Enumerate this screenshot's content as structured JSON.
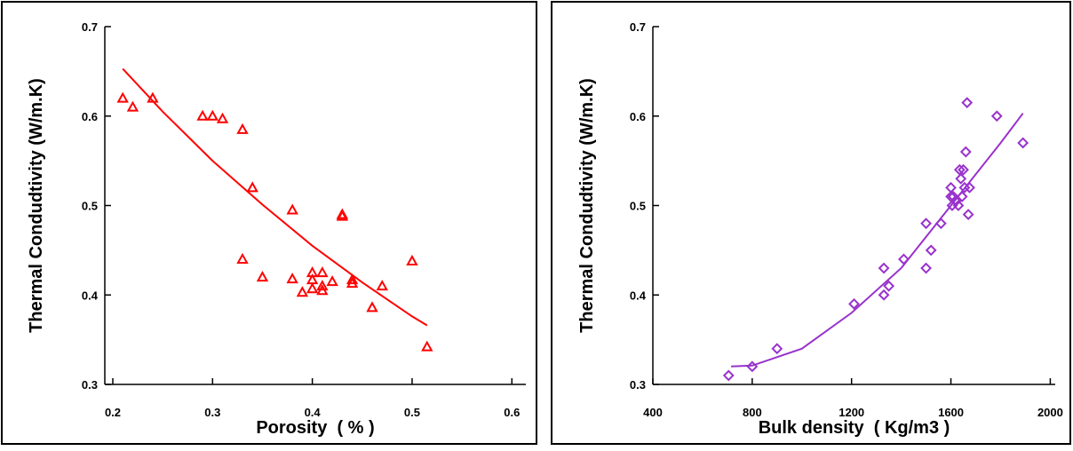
{
  "chart_data": [
    {
      "type": "scatter",
      "marker": "triangle",
      "color": "#ff0000",
      "x_label": "Porosity  ( % )",
      "y_label": "Thermal Condudtivity (W/m.K)",
      "x": [
        0.21,
        0.22,
        0.24,
        0.29,
        0.3,
        0.31,
        0.33,
        0.34,
        0.33,
        0.35,
        0.38,
        0.38,
        0.39,
        0.4,
        0.4,
        0.4,
        0.41,
        0.41,
        0.41,
        0.42,
        0.43,
        0.43,
        0.44,
        0.44,
        0.47,
        0.46,
        0.5,
        0.515
      ],
      "y": [
        0.62,
        0.61,
        0.62,
        0.6,
        0.6,
        0.597,
        0.585,
        0.52,
        0.44,
        0.42,
        0.495,
        0.418,
        0.403,
        0.425,
        0.417,
        0.407,
        0.41,
        0.425,
        0.405,
        0.415,
        0.49,
        0.488,
        0.417,
        0.413,
        0.41,
        0.386,
        0.438,
        0.342
      ],
      "fit": {
        "x": [
          0.21,
          0.25,
          0.3,
          0.35,
          0.4,
          0.45,
          0.5,
          0.515
        ],
        "y": [
          0.653,
          0.605,
          0.55,
          0.501,
          0.455,
          0.414,
          0.376,
          0.366
        ]
      },
      "xlim": [
        0.192,
        0.614
      ],
      "ylim": [
        0.3,
        0.7
      ],
      "xticks": [
        0.2,
        0.3,
        0.4,
        0.5,
        0.6
      ],
      "yticks": [
        0.3,
        0.4,
        0.5,
        0.6,
        0.7
      ]
    },
    {
      "type": "scatter",
      "marker": "diamond",
      "color": "#9932cc",
      "x_label": "Bulk density  ( Kg/m3 )",
      "y_label": "Thermal Condudtivity (W/m.K)",
      "x": [
        705,
        800,
        900,
        1210,
        1330,
        1330,
        1350,
        1410,
        1500,
        1500,
        1520,
        1560,
        1600,
        1600,
        1605,
        1610,
        1620,
        1630,
        1635,
        1640,
        1645,
        1650,
        1655,
        1660,
        1665,
        1670,
        1675,
        1785,
        1890
      ],
      "y": [
        0.31,
        0.32,
        0.34,
        0.39,
        0.43,
        0.4,
        0.41,
        0.44,
        0.48,
        0.43,
        0.45,
        0.48,
        0.52,
        0.51,
        0.5,
        0.51,
        0.505,
        0.5,
        0.54,
        0.53,
        0.51,
        0.54,
        0.52,
        0.56,
        0.615,
        0.49,
        0.52,
        0.6,
        0.57
      ],
      "fit": {
        "x": [
          715,
          800,
          1000,
          1200,
          1400,
          1600,
          1800,
          1890
        ],
        "y": [
          0.32,
          0.321,
          0.34,
          0.38,
          0.43,
          0.5,
          0.57,
          0.603
        ]
      },
      "xlim": [
        400,
        2020
      ],
      "ylim": [
        0.3,
        0.7
      ],
      "xticks": [
        400,
        800,
        1200,
        1600,
        2000
      ],
      "yticks": [
        0.3,
        0.4,
        0.5,
        0.6,
        0.7
      ]
    }
  ]
}
